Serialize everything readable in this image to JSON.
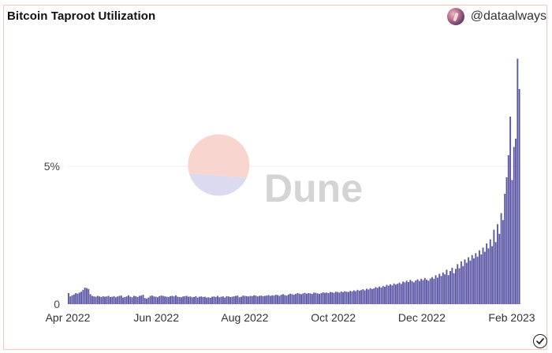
{
  "header": {
    "title": "Bitcoin Taproot Utilization",
    "author_handle": "@dataalways"
  },
  "watermark": {
    "text": "Dune"
  },
  "colors": {
    "bar": "#5b57a6",
    "grid": "#ececec",
    "border": "#f4c7bd",
    "logo_top": "#f8d6cf",
    "logo_bottom": "#dcdaf0"
  },
  "chart_data": {
    "type": "bar",
    "xlabel": "",
    "ylabel": "",
    "x_start": "2022-04-01",
    "x_end": "2023-02-07",
    "x_ticks": [
      "Apr 2022",
      "Jun 2022",
      "Aug 2022",
      "Oct 2022",
      "Dec 2022",
      "Feb 2023"
    ],
    "x_tick_dates": [
      "2022-04-01",
      "2022-06-01",
      "2022-08-01",
      "2022-10-01",
      "2022-12-01",
      "2023-02-01"
    ],
    "y_ticks": [
      "0",
      "5%"
    ],
    "y_tick_values": [
      0,
      5
    ],
    "ylim": [
      0,
      9.6
    ],
    "grid": true,
    "values": [
      0.4,
      0.28,
      0.32,
      0.35,
      0.4,
      0.38,
      0.42,
      0.45,
      0.52,
      0.6,
      0.58,
      0.55,
      0.36,
      0.3,
      0.28,
      0.27,
      0.3,
      0.28,
      0.26,
      0.29,
      0.27,
      0.28,
      0.3,
      0.26,
      0.27,
      0.29,
      0.25,
      0.28,
      0.3,
      0.31,
      0.24,
      0.26,
      0.28,
      0.32,
      0.27,
      0.25,
      0.3,
      0.29,
      0.26,
      0.3,
      0.31,
      0.34,
      0.22,
      0.2,
      0.24,
      0.3,
      0.31,
      0.28,
      0.27,
      0.25,
      0.29,
      0.31,
      0.3,
      0.28,
      0.27,
      0.26,
      0.29,
      0.3,
      0.28,
      0.32,
      0.27,
      0.26,
      0.25,
      0.28,
      0.29,
      0.3,
      0.27,
      0.28,
      0.25,
      0.26,
      0.29,
      0.24,
      0.27,
      0.28,
      0.26,
      0.27,
      0.24,
      0.25,
      0.23,
      0.27,
      0.28,
      0.26,
      0.3,
      0.25,
      0.27,
      0.28,
      0.24,
      0.29,
      0.28,
      0.26,
      0.27,
      0.28,
      0.3,
      0.31,
      0.25,
      0.27,
      0.31,
      0.3,
      0.29,
      0.28,
      0.3,
      0.29,
      0.32,
      0.31,
      0.28,
      0.3,
      0.31,
      0.29,
      0.3,
      0.31,
      0.33,
      0.3,
      0.32,
      0.31,
      0.34,
      0.33,
      0.3,
      0.34,
      0.36,
      0.33,
      0.31,
      0.35,
      0.38,
      0.36,
      0.34,
      0.37,
      0.4,
      0.38,
      0.36,
      0.39,
      0.41,
      0.38,
      0.4,
      0.39,
      0.37,
      0.42,
      0.41,
      0.39,
      0.37,
      0.4,
      0.43,
      0.41,
      0.42,
      0.4,
      0.44,
      0.43,
      0.41,
      0.45,
      0.44,
      0.42,
      0.46,
      0.43,
      0.47,
      0.45,
      0.44,
      0.48,
      0.46,
      0.5,
      0.47,
      0.52,
      0.49,
      0.51,
      0.54,
      0.5,
      0.56,
      0.53,
      0.58,
      0.55,
      0.57,
      0.62,
      0.59,
      0.64,
      0.6,
      0.66,
      0.63,
      0.7,
      0.67,
      0.72,
      0.68,
      0.75,
      0.71,
      0.74,
      0.78,
      0.73,
      0.82,
      0.79,
      0.85,
      0.8,
      0.88,
      0.83,
      0.79,
      0.86,
      0.9,
      0.84,
      0.92,
      0.87,
      0.95,
      0.89,
      0.85,
      0.93,
      0.98,
      0.92,
      1.05,
      0.96,
      1.1,
      1.02,
      1.15,
      1.08,
      1.25,
      1.05,
      1.2,
      1.32,
      1.12,
      1.28,
      1.45,
      1.3,
      1.55,
      1.38,
      1.62,
      1.5,
      1.7,
      1.58,
      1.78,
      1.66,
      1.85,
      1.72,
      1.95,
      1.8,
      2.05,
      1.9,
      2.2,
      2.02,
      2.35,
      2.1,
      2.7,
      2.25,
      2.9,
      2.55,
      3.3,
      3.05,
      4.0,
      4.6,
      5.4,
      6.8,
      4.5,
      5.7,
      6.0,
      8.9,
      7.8
    ]
  },
  "footer": {
    "verified_icon": "check-circle-icon"
  }
}
